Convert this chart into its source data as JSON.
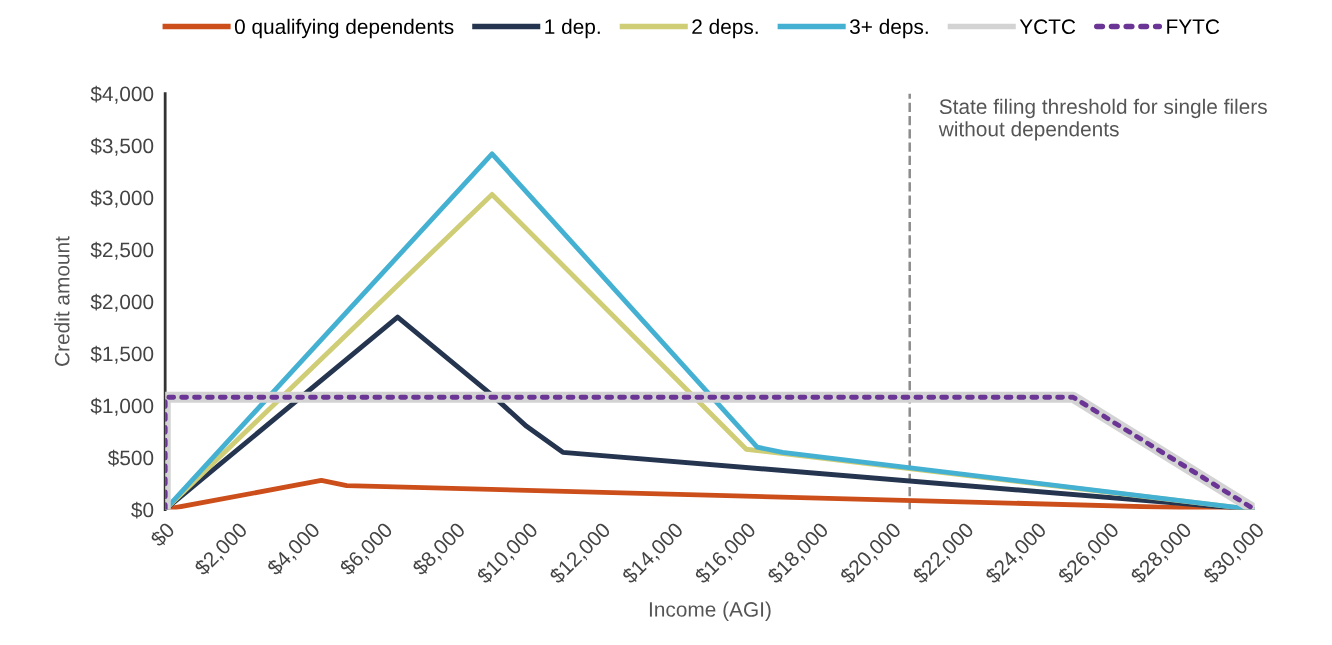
{
  "chart_data": {
    "type": "line",
    "xlabel": "Income (AGI)",
    "ylabel": "Credit amount",
    "xlim": [
      0,
      30000
    ],
    "ylim": [
      0,
      4000
    ],
    "xticks": [
      {
        "value": 0,
        "label": "$0"
      },
      {
        "value": 2000,
        "label": "$2,000"
      },
      {
        "value": 4000,
        "label": "$4,000"
      },
      {
        "value": 6000,
        "label": "$6,000"
      },
      {
        "value": 8000,
        "label": "$8,000"
      },
      {
        "value": 10000,
        "label": "$10,000"
      },
      {
        "value": 12000,
        "label": "$12,000"
      },
      {
        "value": 14000,
        "label": "$14,000"
      },
      {
        "value": 16000,
        "label": "$16,000"
      },
      {
        "value": 18000,
        "label": "$18,000"
      },
      {
        "value": 20000,
        "label": "$20,000"
      },
      {
        "value": 22000,
        "label": "$22,000"
      },
      {
        "value": 24000,
        "label": "$24,000"
      },
      {
        "value": 26000,
        "label": "$26,000"
      },
      {
        "value": 28000,
        "label": "$28,000"
      },
      {
        "value": 30000,
        "label": "$30,000"
      }
    ],
    "yticks": [
      {
        "value": 0,
        "label": "$0"
      },
      {
        "value": 500,
        "label": "$500"
      },
      {
        "value": 1000,
        "label": "$1,000"
      },
      {
        "value": 1500,
        "label": "$1,500"
      },
      {
        "value": 2000,
        "label": "$2,000"
      },
      {
        "value": 2500,
        "label": "$2,500"
      },
      {
        "value": 3000,
        "label": "$3,000"
      },
      {
        "value": 3500,
        "label": "$3,500"
      },
      {
        "value": 4000,
        "label": "$4,000"
      }
    ],
    "grid": false,
    "legend": "top",
    "marker": "none",
    "series": [
      {
        "name": "0 qualifying dependents",
        "color": "#cc4f1b",
        "x": [
          0,
          4300,
          5000,
          30000
        ],
        "values": [
          0,
          280,
          230,
          0
        ]
      },
      {
        "name": "1 dep.",
        "color": "#253550",
        "x": [
          0,
          6400,
          9000,
          9950,
          10950,
          30000
        ],
        "values": [
          0,
          1850,
          1100,
          800,
          550,
          0
        ]
      },
      {
        "name": "2 deps.",
        "color": "#cfcd75",
        "x": [
          0,
          9000,
          16000,
          30000
        ],
        "values": [
          0,
          3030,
          580,
          0
        ]
      },
      {
        "name": "3+ deps.",
        "color": "#45b1d2",
        "x": [
          0,
          9000,
          16300,
          17000,
          30000
        ],
        "values": [
          0,
          3420,
          600,
          550,
          0
        ]
      },
      {
        "name": "YCTC",
        "color": "#d3d3d3",
        "x": [
          0,
          0,
          25000,
          30000
        ],
        "values": [
          0,
          1080,
          1080,
          0
        ]
      },
      {
        "name": "FYTC",
        "color": "#6b3595",
        "line_style": "dotted",
        "x": [
          0,
          0,
          25000,
          30000
        ],
        "values": [
          0,
          1080,
          1080,
          0
        ]
      }
    ],
    "ref_lines": [
      {
        "axis": "x",
        "value": 20500,
        "label": "State filing threshold for single filers without dependents",
        "color": "#8c8c8c",
        "line_style": "dashed"
      }
    ]
  }
}
